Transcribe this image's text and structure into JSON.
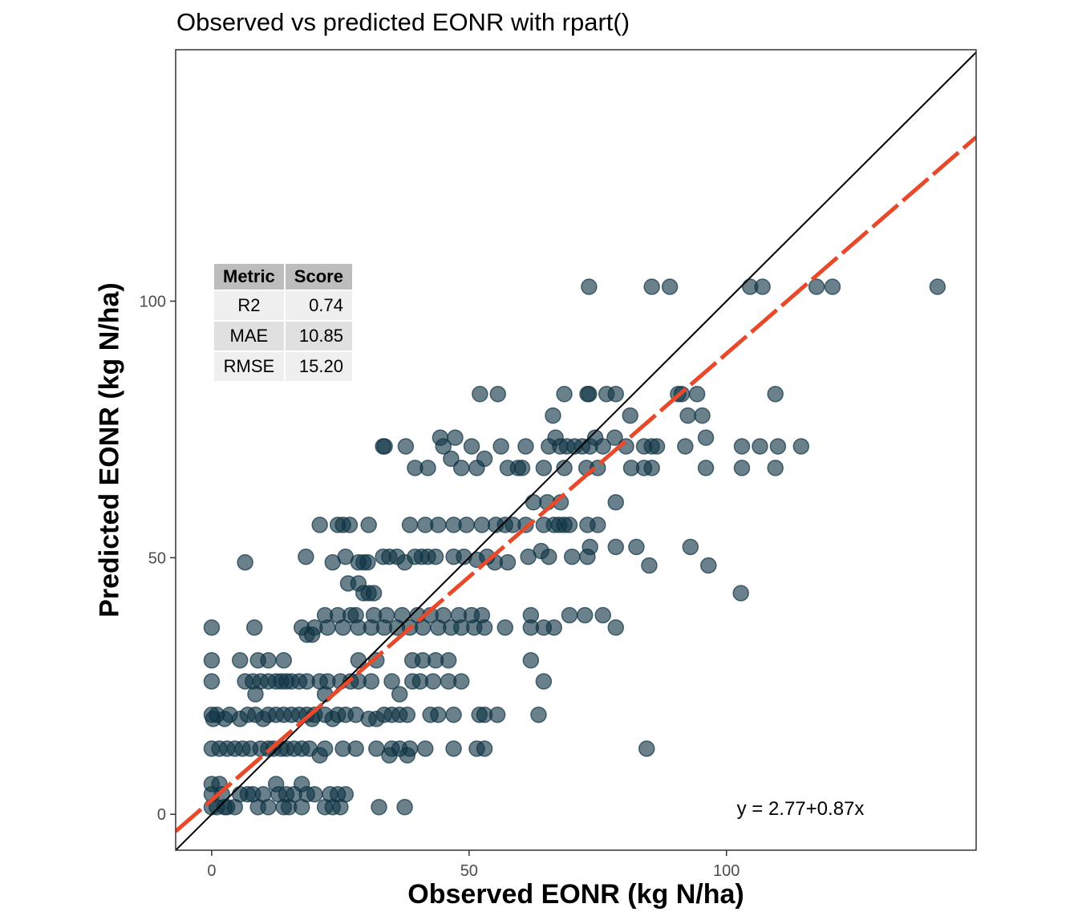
{
  "chart_data": {
    "type": "scatter",
    "title": "Observed vs predicted EONR with rpart()",
    "xlabel": "Observed EONR (kg N/ha)",
    "ylabel": "Predicted EONR (kg N/ha)",
    "xlim": [
      -7,
      148.5
    ],
    "ylim": [
      -7,
      149
    ],
    "xticks": [
      0,
      50,
      100
    ],
    "yticks": [
      0,
      50,
      100
    ],
    "grid": false,
    "point_color": "#0f3344",
    "identity_line": {
      "label": "1:1",
      "intercept": 0,
      "slope": 1,
      "color": "#000000"
    },
    "fit_line": {
      "label": "y = 2.77+0.87x",
      "intercept": 2.77,
      "slope": 0.87,
      "color": "#e8492a",
      "style": "dashed"
    },
    "metrics_table": {
      "headers": [
        "Metric",
        "Score"
      ],
      "rows": [
        [
          "R2",
          "0.74"
        ],
        [
          "MAE",
          "10.85"
        ],
        [
          "RMSE",
          "15.20"
        ]
      ]
    },
    "series": [
      {
        "name": "observations",
        "points": [
          [
            73.3,
            102.8
          ],
          [
            85.5,
            102.8
          ],
          [
            89.0,
            102.8
          ],
          [
            104.6,
            102.8
          ],
          [
            107.0,
            102.8
          ],
          [
            117.5,
            102.8
          ],
          [
            120.6,
            102.8
          ],
          [
            141.0,
            102.8
          ],
          [
            52.1,
            81.9
          ],
          [
            55.6,
            81.9
          ],
          [
            66.3,
            77.7
          ],
          [
            68.5,
            81.9
          ],
          [
            73.0,
            81.9
          ],
          [
            73.3,
            81.9
          ],
          [
            76.7,
            81.9
          ],
          [
            78.5,
            81.9
          ],
          [
            81.3,
            77.7
          ],
          [
            90.6,
            81.9
          ],
          [
            91.3,
            81.9
          ],
          [
            92.5,
            77.7
          ],
          [
            94.3,
            81.9
          ],
          [
            95.3,
            77.7
          ],
          [
            109.5,
            81.9
          ],
          [
            33.3,
            71.7
          ],
          [
            33.6,
            71.7
          ],
          [
            37.7,
            71.7
          ],
          [
            44.4,
            73.4
          ],
          [
            45.0,
            71.7
          ],
          [
            47.3,
            73.4
          ],
          [
            50.5,
            71.7
          ],
          [
            56.2,
            71.7
          ],
          [
            61.0,
            71.7
          ],
          [
            65.5,
            71.7
          ],
          [
            66.8,
            73.4
          ],
          [
            67.7,
            71.7
          ],
          [
            69.0,
            71.7
          ],
          [
            70.5,
            71.7
          ],
          [
            72.0,
            71.7
          ],
          [
            73.5,
            71.7
          ],
          [
            74.5,
            73.4
          ],
          [
            76.0,
            71.7
          ],
          [
            78.3,
            73.4
          ],
          [
            80.5,
            71.7
          ],
          [
            84.0,
            71.7
          ],
          [
            85.5,
            71.7
          ],
          [
            86.5,
            71.7
          ],
          [
            92.0,
            71.7
          ],
          [
            96.0,
            73.4
          ],
          [
            103.0,
            71.7
          ],
          [
            106.5,
            71.7
          ],
          [
            110.0,
            71.7
          ],
          [
            114.5,
            71.7
          ],
          [
            39.5,
            67.5
          ],
          [
            42.0,
            67.5
          ],
          [
            46.5,
            69.3
          ],
          [
            48.5,
            67.5
          ],
          [
            51.5,
            67.5
          ],
          [
            53.0,
            69.3
          ],
          [
            57.5,
            67.5
          ],
          [
            59.5,
            67.5
          ],
          [
            60.3,
            67.5
          ],
          [
            64.5,
            67.5
          ],
          [
            68.5,
            67.5
          ],
          [
            72.8,
            67.5
          ],
          [
            75.0,
            67.5
          ],
          [
            81.5,
            67.5
          ],
          [
            84.0,
            67.5
          ],
          [
            85.5,
            67.5
          ],
          [
            96.0,
            67.5
          ],
          [
            103.0,
            67.5
          ],
          [
            109.5,
            67.5
          ],
          [
            62.5,
            60.8
          ],
          [
            65.2,
            60.8
          ],
          [
            67.8,
            60.8
          ],
          [
            78.5,
            60.8
          ],
          [
            21.0,
            56.4
          ],
          [
            24.5,
            56.4
          ],
          [
            25.5,
            56.4
          ],
          [
            26.8,
            56.4
          ],
          [
            30.5,
            56.4
          ],
          [
            38.5,
            56.4
          ],
          [
            41.5,
            56.4
          ],
          [
            44.0,
            56.4
          ],
          [
            47.0,
            56.4
          ],
          [
            49.5,
            56.4
          ],
          [
            52.5,
            56.4
          ],
          [
            55.2,
            56.4
          ],
          [
            57.0,
            56.4
          ],
          [
            58.5,
            56.4
          ],
          [
            61.0,
            56.4
          ],
          [
            64.5,
            56.4
          ],
          [
            66.5,
            56.4
          ],
          [
            67.5,
            56.4
          ],
          [
            68.5,
            56.4
          ],
          [
            69.5,
            56.4
          ],
          [
            73.0,
            56.4
          ],
          [
            75.0,
            56.4
          ],
          [
            6.5,
            49.1
          ],
          [
            18.3,
            50.2
          ],
          [
            23.5,
            49.1
          ],
          [
            26.0,
            50.2
          ],
          [
            28.5,
            49.1
          ],
          [
            29.5,
            49.1
          ],
          [
            30.3,
            49.1
          ],
          [
            33.3,
            50.2
          ],
          [
            34.5,
            50.2
          ],
          [
            36.0,
            50.2
          ],
          [
            37.5,
            49.1
          ],
          [
            39.5,
            50.2
          ],
          [
            40.8,
            50.2
          ],
          [
            42.0,
            50.2
          ],
          [
            43.5,
            50.2
          ],
          [
            47.0,
            50.2
          ],
          [
            49.0,
            50.2
          ],
          [
            51.5,
            49.6
          ],
          [
            53.5,
            50.2
          ],
          [
            55.0,
            49.1
          ],
          [
            57.5,
            49.1
          ],
          [
            61.5,
            50.2
          ],
          [
            64.0,
            51.3
          ],
          [
            65.5,
            50.2
          ],
          [
            70.0,
            50.2
          ],
          [
            73.0,
            50.2
          ],
          [
            73.5,
            52.1
          ],
          [
            78.5,
            52.1
          ],
          [
            82.5,
            52.1
          ],
          [
            85.0,
            48.5
          ],
          [
            93.0,
            52.1
          ],
          [
            96.5,
            48.5
          ],
          [
            102.8,
            43.1
          ],
          [
            26.5,
            45.0
          ],
          [
            28.5,
            45.0
          ],
          [
            29.5,
            43.1
          ],
          [
            30.5,
            43.1
          ],
          [
            31.5,
            43.1
          ],
          [
            0.0,
            36.4
          ],
          [
            8.3,
            36.4
          ],
          [
            17.5,
            36.4
          ],
          [
            20.0,
            36.4
          ],
          [
            22.5,
            36.4
          ],
          [
            25.5,
            36.4
          ],
          [
            28.5,
            36.4
          ],
          [
            31.0,
            36.4
          ],
          [
            33.5,
            36.4
          ],
          [
            36.0,
            36.4
          ],
          [
            38.5,
            36.4
          ],
          [
            41.0,
            36.4
          ],
          [
            44.0,
            36.4
          ],
          [
            46.5,
            36.4
          ],
          [
            48.5,
            36.4
          ],
          [
            51.0,
            36.4
          ],
          [
            53.0,
            36.4
          ],
          [
            57.0,
            36.4
          ],
          [
            62.0,
            36.4
          ],
          [
            64.5,
            36.4
          ],
          [
            66.5,
            36.4
          ],
          [
            18.5,
            35.0
          ],
          [
            19.5,
            35.0
          ],
          [
            22.0,
            38.8
          ],
          [
            24.5,
            38.8
          ],
          [
            27.0,
            38.8
          ],
          [
            28.0,
            38.8
          ],
          [
            31.5,
            38.8
          ],
          [
            34.0,
            38.8
          ],
          [
            37.0,
            38.8
          ],
          [
            40.0,
            38.8
          ],
          [
            42.5,
            38.8
          ],
          [
            45.0,
            38.8
          ],
          [
            48.0,
            38.8
          ],
          [
            50.5,
            38.8
          ],
          [
            52.5,
            38.8
          ],
          [
            62.0,
            38.8
          ],
          [
            69.5,
            38.8
          ],
          [
            72.5,
            38.8
          ],
          [
            76.0,
            38.8
          ],
          [
            78.5,
            36.4
          ],
          [
            0.0,
            30.0
          ],
          [
            5.5,
            30.0
          ],
          [
            9.0,
            30.0
          ],
          [
            11.0,
            30.0
          ],
          [
            14.0,
            30.0
          ],
          [
            28.5,
            30.0
          ],
          [
            32.0,
            30.0
          ],
          [
            39.0,
            30.0
          ],
          [
            41.0,
            30.0
          ],
          [
            43.5,
            30.0
          ],
          [
            46.0,
            30.0
          ],
          [
            62.0,
            30.0
          ],
          [
            0.0,
            25.9
          ],
          [
            6.5,
            25.9
          ],
          [
            8.0,
            25.9
          ],
          [
            9.5,
            25.9
          ],
          [
            11.0,
            25.9
          ],
          [
            12.5,
            25.9
          ],
          [
            13.5,
            25.9
          ],
          [
            14.5,
            25.9
          ],
          [
            15.5,
            25.9
          ],
          [
            17.0,
            25.9
          ],
          [
            18.5,
            25.9
          ],
          [
            21.0,
            25.9
          ],
          [
            22.5,
            25.9
          ],
          [
            25.0,
            25.9
          ],
          [
            27.0,
            25.9
          ],
          [
            28.5,
            25.9
          ],
          [
            31.0,
            25.9
          ],
          [
            35.0,
            25.9
          ],
          [
            39.0,
            25.9
          ],
          [
            40.5,
            25.9
          ],
          [
            43.0,
            25.9
          ],
          [
            46.0,
            25.9
          ],
          [
            48.5,
            25.9
          ],
          [
            64.5,
            25.9
          ],
          [
            36.5,
            23.4
          ],
          [
            8.5,
            23.4
          ],
          [
            22.0,
            23.4
          ],
          [
            0.0,
            19.4
          ],
          [
            0.3,
            18.6
          ],
          [
            1.0,
            19.4
          ],
          [
            2.5,
            18.6
          ],
          [
            3.5,
            19.4
          ],
          [
            5.5,
            18.6
          ],
          [
            7.0,
            19.4
          ],
          [
            8.5,
            19.4
          ],
          [
            10.0,
            18.6
          ],
          [
            11.0,
            19.4
          ],
          [
            12.5,
            19.4
          ],
          [
            14.0,
            19.4
          ],
          [
            15.5,
            19.4
          ],
          [
            17.0,
            19.4
          ],
          [
            18.5,
            19.4
          ],
          [
            20.0,
            19.4
          ],
          [
            22.0,
            19.4
          ],
          [
            24.5,
            19.4
          ],
          [
            26.0,
            19.4
          ],
          [
            28.0,
            19.4
          ],
          [
            30.5,
            18.6
          ],
          [
            32.0,
            18.6
          ],
          [
            33.5,
            19.4
          ],
          [
            35.0,
            19.4
          ],
          [
            36.5,
            19.4
          ],
          [
            38.0,
            19.4
          ],
          [
            42.5,
            19.4
          ],
          [
            44.0,
            19.4
          ],
          [
            47.0,
            19.4
          ],
          [
            52.0,
            19.4
          ],
          [
            53.0,
            19.4
          ],
          [
            55.5,
            19.4
          ],
          [
            63.5,
            19.4
          ],
          [
            19.5,
            18.6
          ],
          [
            23.5,
            18.6
          ],
          [
            0.0,
            12.8
          ],
          [
            1.5,
            12.8
          ],
          [
            3.0,
            12.8
          ],
          [
            4.5,
            12.8
          ],
          [
            6.0,
            12.8
          ],
          [
            7.5,
            12.8
          ],
          [
            9.5,
            12.8
          ],
          [
            11.0,
            12.8
          ],
          [
            12.0,
            12.8
          ],
          [
            13.5,
            12.8
          ],
          [
            14.5,
            12.8
          ],
          [
            16.0,
            12.8
          ],
          [
            17.5,
            12.8
          ],
          [
            19.0,
            12.8
          ],
          [
            22.0,
            12.8
          ],
          [
            25.5,
            12.8
          ],
          [
            28.0,
            12.8
          ],
          [
            32.0,
            12.8
          ],
          [
            35.0,
            12.8
          ],
          [
            36.5,
            12.8
          ],
          [
            38.5,
            12.8
          ],
          [
            41.5,
            12.8
          ],
          [
            47.0,
            12.8
          ],
          [
            51.5,
            12.8
          ],
          [
            53.0,
            12.8
          ],
          [
            84.5,
            12.8
          ],
          [
            21.0,
            11.5
          ],
          [
            34.5,
            11.5
          ],
          [
            38.0,
            11.5
          ],
          [
            0.0,
            5.9
          ],
          [
            0.0,
            3.9
          ],
          [
            1.5,
            5.9
          ],
          [
            5.5,
            3.9
          ],
          [
            7.0,
            3.9
          ],
          [
            12.5,
            5.9
          ],
          [
            13.0,
            3.9
          ],
          [
            17.5,
            5.9
          ],
          [
            18.5,
            3.9
          ],
          [
            20.0,
            3.9
          ],
          [
            23.0,
            3.9
          ],
          [
            24.5,
            3.9
          ],
          [
            26.0,
            3.9
          ],
          [
            0.0,
            1.4
          ],
          [
            1.0,
            1.4
          ],
          [
            2.5,
            1.4
          ],
          [
            4.5,
            1.4
          ],
          [
            9.0,
            1.4
          ],
          [
            11.0,
            1.4
          ],
          [
            14.0,
            1.4
          ],
          [
            15.0,
            1.4
          ],
          [
            17.5,
            1.4
          ],
          [
            22.0,
            1.4
          ],
          [
            23.5,
            1.4
          ],
          [
            25.0,
            1.4
          ],
          [
            32.5,
            1.4
          ],
          [
            37.5,
            1.4
          ],
          [
            8.0,
            3.9
          ],
          [
            10.0,
            3.9
          ],
          [
            14.5,
            3.9
          ],
          [
            16.0,
            3.9
          ],
          [
            2.0,
            3.9
          ],
          [
            3.0,
            1.4
          ]
        ]
      }
    ]
  }
}
